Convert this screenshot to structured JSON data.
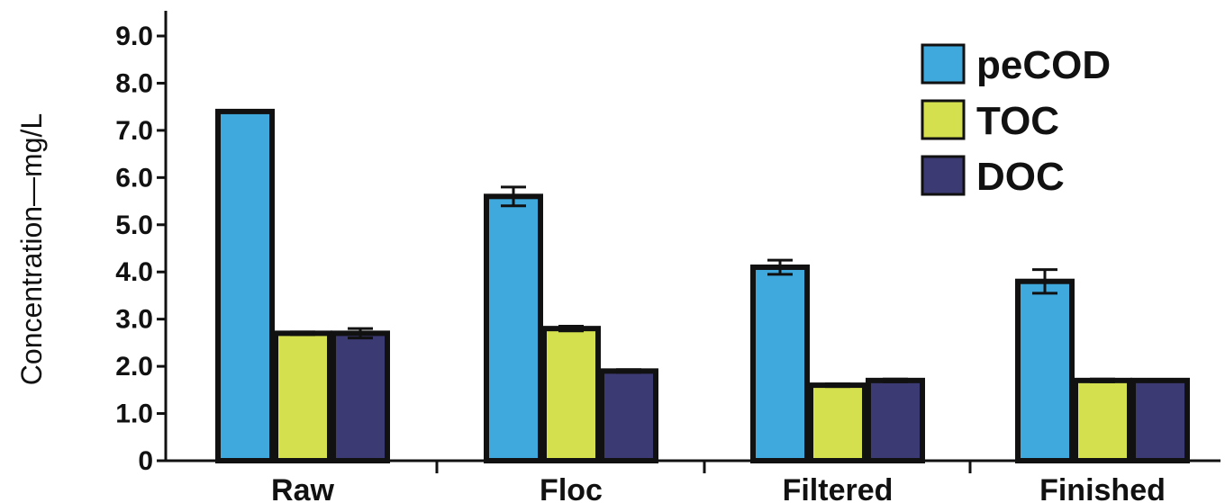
{
  "chart_data": {
    "type": "bar",
    "title": "",
    "xlabel": "",
    "ylabel": "Concentration—mg/L",
    "ylim": [
      0,
      9.0
    ],
    "yticks": [
      "0",
      "1.0",
      "2.0",
      "3.0",
      "4.0",
      "5.0",
      "6.0",
      "7.0",
      "8.0",
      "9.0"
    ],
    "categories": [
      "Raw",
      "Floc",
      "Filtered",
      "Finished"
    ],
    "legend_position": "top-right",
    "grid": false,
    "series": [
      {
        "name": "peCOD",
        "color": "#3fa9de",
        "values": [
          7.4,
          5.6,
          4.1,
          3.8
        ],
        "errors": [
          0.02,
          0.2,
          0.15,
          0.25
        ]
      },
      {
        "name": "TOC",
        "color": "#d5e04f",
        "values": [
          2.7,
          2.8,
          1.6,
          1.7
        ],
        "errors": [
          0.03,
          0.05,
          0.03,
          0.03
        ]
      },
      {
        "name": "DOC",
        "color": "#3c3a72",
        "values": [
          2.7,
          1.9,
          1.7,
          1.7
        ],
        "errors": [
          0.1,
          0.03,
          0.03,
          0.02
        ]
      }
    ]
  }
}
